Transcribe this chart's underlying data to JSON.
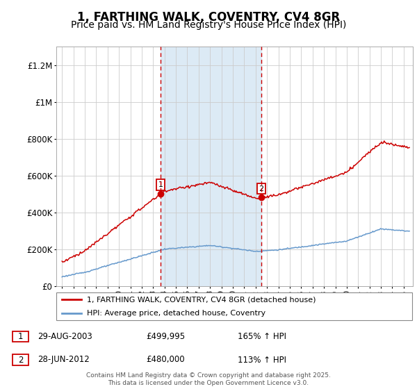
{
  "title": "1, FARTHING WALK, COVENTRY, CV4 8GR",
  "subtitle": "Price paid vs. HM Land Registry's House Price Index (HPI)",
  "title_fontsize": 12,
  "subtitle_fontsize": 10,
  "background_color": "#ffffff",
  "plot_bg_color": "#ffffff",
  "grid_color": "#cccccc",
  "sale1_date": 2003.66,
  "sale1_price": 499995,
  "sale2_date": 2012.49,
  "sale2_price": 480000,
  "hpi_color": "#6699cc",
  "price_color": "#cc0000",
  "shade_color": "#dceaf5",
  "ylim_min": 0,
  "ylim_max": 1300000,
  "yticks": [
    0,
    200000,
    400000,
    600000,
    800000,
    1000000,
    1200000
  ],
  "ytick_labels": [
    "£0",
    "£200K",
    "£400K",
    "£600K",
    "£800K",
    "£1M",
    "£1.2M"
  ],
  "xlim_min": 1994.5,
  "xlim_max": 2025.8,
  "footer_text": "Contains HM Land Registry data © Crown copyright and database right 2025.\nThis data is licensed under the Open Government Licence v3.0.",
  "legend_label_price": "1, FARTHING WALK, COVENTRY, CV4 8GR (detached house)",
  "legend_label_hpi": "HPI: Average price, detached house, Coventry"
}
